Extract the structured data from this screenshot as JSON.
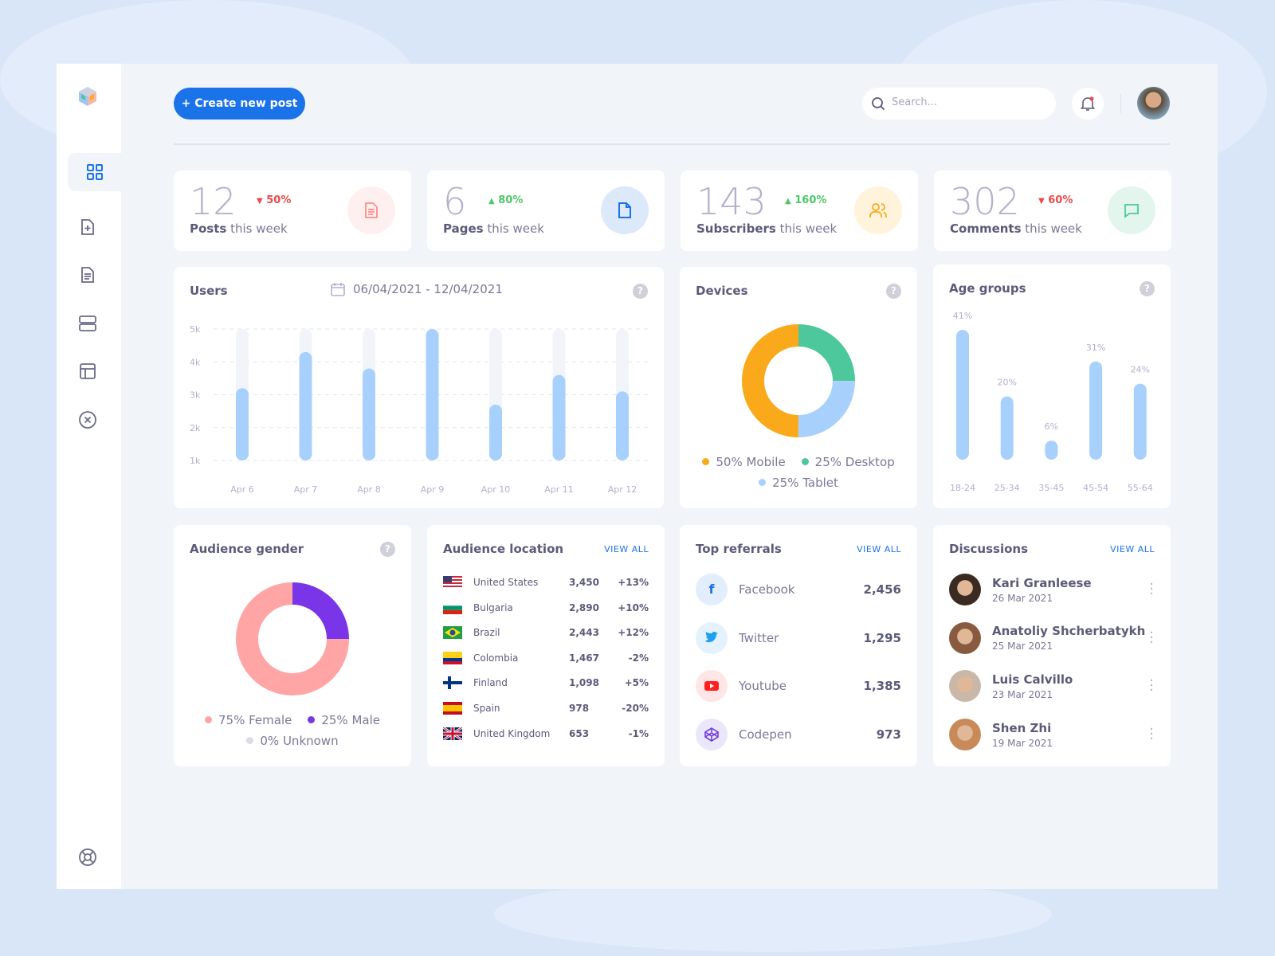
{
  "header": {
    "create_label": "Create new post",
    "search_placeholder": "Search..."
  },
  "sidebar": {
    "items": [
      "dashboard",
      "add-page",
      "document",
      "database",
      "layout",
      "close-circle"
    ],
    "help": "lifebuoy"
  },
  "stats": [
    {
      "value": "12",
      "delta": "50%",
      "dir": "down",
      "bold": "Posts",
      "rest": " this week",
      "icon": "document-icon",
      "color": "#fd8b8b",
      "bg": "#fff0f0"
    },
    {
      "value": "6",
      "delta": "80%",
      "dir": "up",
      "bold": "Pages",
      "rest": " this week",
      "icon": "page-icon",
      "color": "#1a73e8",
      "bg": "#dbe9fb"
    },
    {
      "value": "143",
      "delta": "160%",
      "dir": "up",
      "bold": "Subscribers",
      "rest": " this week",
      "icon": "users-icon",
      "color": "#f9a91a",
      "bg": "#fff3dc"
    },
    {
      "value": "302",
      "delta": "60%",
      "dir": "down",
      "bold": "Comments",
      "rest": " this week",
      "icon": "chat-icon",
      "color": "#4dc79c",
      "bg": "#e2f6ee"
    }
  ],
  "users": {
    "title": "Users",
    "date_range": "06/04/2021 - 12/04/2021"
  },
  "devices": {
    "title": "Devices",
    "legend": [
      "50% Mobile",
      "25% Desktop",
      "25% Tablet"
    ]
  },
  "age": {
    "title": "Age groups"
  },
  "gender": {
    "title": "Audience gender",
    "legend": [
      "75% Female",
      "25% Male",
      "0% Unknown"
    ]
  },
  "location": {
    "title": "Audience location",
    "view_all": "VIEW ALL",
    "rows": [
      {
        "country": "United States",
        "value": "3,450",
        "change": "+13%"
      },
      {
        "country": "Bulgaria",
        "value": "2,890",
        "change": "+10%"
      },
      {
        "country": "Brazil",
        "value": "2,443",
        "change": "+12%"
      },
      {
        "country": "Colombia",
        "value": "1,467",
        "change": "-2%"
      },
      {
        "country": "Finland",
        "value": "1,098",
        "change": "+5%"
      },
      {
        "country": "Spain",
        "value": "978",
        "change": "-20%"
      },
      {
        "country": "United Kingdom",
        "value": "653",
        "change": "-1%"
      }
    ]
  },
  "referrals": {
    "title": "Top referrals",
    "view_all": "VIEW ALL",
    "rows": [
      {
        "name": "Facebook",
        "value": "2,456",
        "color": "#1a73e8",
        "bg": "#e3eefc"
      },
      {
        "name": "Twitter",
        "value": "1,295",
        "color": "#1da1f2",
        "bg": "#e3f2fc"
      },
      {
        "name": "Youtube",
        "value": "1,385",
        "color": "#ff1f1f",
        "bg": "#ffe6e6"
      },
      {
        "name": "Codepen",
        "value": "973",
        "color": "#6e3fe0",
        "bg": "#ece6fb"
      }
    ]
  },
  "discussions": {
    "title": "Discussions",
    "view_all": "VIEW ALL",
    "rows": [
      {
        "name": "Kari Granleese",
        "date": "26 Mar 2021"
      },
      {
        "name": "Anatoliy Shcherbatykh",
        "date": "25 Mar 2021"
      },
      {
        "name": "Luis Calvillo",
        "date": "23 Mar 2021"
      },
      {
        "name": "Shen Zhi",
        "date": "19 Mar 2021"
      }
    ]
  },
  "chart_data": [
    {
      "type": "bar",
      "title": "Users",
      "categories": [
        "Apr 6",
        "Apr 7",
        "Apr 8",
        "Apr 9",
        "Apr 10",
        "Apr 11",
        "Apr 12"
      ],
      "values": [
        3.2,
        4.3,
        3.8,
        5.0,
        2.7,
        3.6,
        3.1
      ],
      "yticks": [
        "1k",
        "2k",
        "3k",
        "4k",
        "5k"
      ],
      "ylim": [
        1,
        5
      ],
      "grid": true
    },
    {
      "type": "pie",
      "title": "Devices",
      "donut": true,
      "slices": [
        {
          "label": "Mobile",
          "value": 50,
          "color": "#f9a91a"
        },
        {
          "label": "Desktop",
          "value": 25,
          "color": "#4dc79c"
        },
        {
          "label": "Tablet",
          "value": 25,
          "color": "#a8d0fc"
        }
      ]
    },
    {
      "type": "bar",
      "title": "Age groups",
      "categories": [
        "18-24",
        "25-34",
        "35-45",
        "45-54",
        "55-64"
      ],
      "values": [
        41,
        20,
        6,
        31,
        24
      ],
      "labels": [
        "41%",
        "20%",
        "6%",
        "31%",
        "24%"
      ]
    },
    {
      "type": "pie",
      "title": "Audience gender",
      "donut": true,
      "slices": [
        {
          "label": "Female",
          "value": 75,
          "color": "#ffa5a5"
        },
        {
          "label": "Male",
          "value": 25,
          "color": "#7a35e8"
        },
        {
          "label": "Unknown",
          "value": 0,
          "color": "#dcdce4"
        }
      ]
    }
  ]
}
